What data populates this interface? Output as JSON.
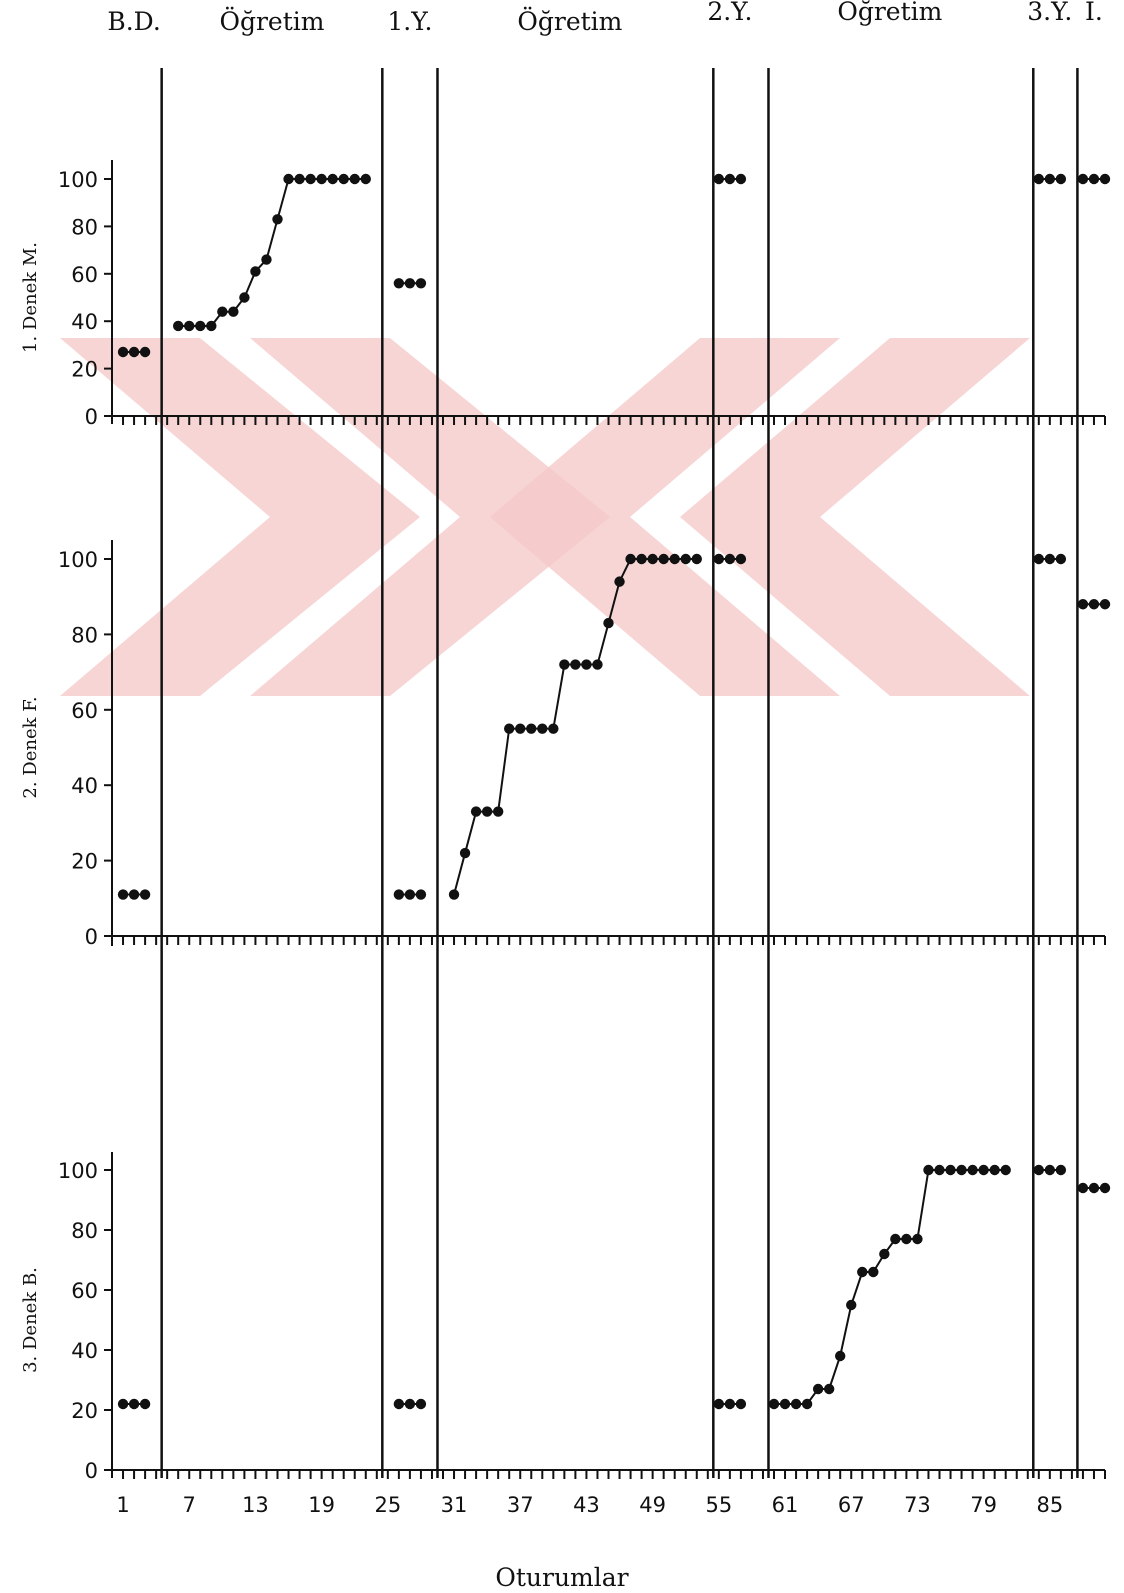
{
  "chart_data": {
    "type": "line",
    "xlabel": "Oturumlar",
    "x_ticks": [
      1,
      7,
      13,
      19,
      25,
      31,
      37,
      43,
      49,
      55,
      61,
      67,
      73,
      79,
      85
    ],
    "xlim": [
      0,
      90
    ],
    "ylim": [
      0,
      100
    ],
    "y_ticks": [
      0,
      20,
      40,
      60,
      80,
      100
    ],
    "phases": [
      {
        "label": "B.D.",
        "start": 1,
        "end": 3
      },
      {
        "label": "Öğretim",
        "start": 6,
        "end": 23
      },
      {
        "label": "1.Y.",
        "start": 26,
        "end": 28
      },
      {
        "label": "Öğretim",
        "start": 30,
        "end": 53
      },
      {
        "label": "2.Y.",
        "start": 55,
        "end": 57
      },
      {
        "label": "Öğretim",
        "start": 60,
        "end": 81
      },
      {
        "label": "3.Y.",
        "start": 84,
        "end": 86
      },
      {
        "label": "İ.",
        "start": 88,
        "end": 90
      }
    ],
    "phase_change_lines": [
      4.5,
      24.5,
      29.5,
      54.5,
      59.5,
      83.5,
      87.5
    ],
    "panels": [
      {
        "ylabel": "1. Denek M.",
        "segments": [
          {
            "x": [
              1,
              2,
              3
            ],
            "y": [
              27,
              27,
              27
            ]
          },
          {
            "x": [
              6,
              7,
              8,
              9,
              10,
              11,
              12,
              13,
              14,
              15,
              16,
              17,
              18,
              19,
              20,
              21,
              22,
              23
            ],
            "y": [
              38,
              38,
              38,
              38,
              44,
              44,
              50,
              61,
              66,
              83,
              100,
              100,
              100,
              100,
              100,
              100,
              100,
              100
            ]
          },
          {
            "x": [
              26,
              27,
              28
            ],
            "y": [
              56,
              56,
              56
            ]
          },
          {
            "x": [
              55,
              56,
              57
            ],
            "y": [
              100,
              100,
              100
            ]
          },
          {
            "x": [
              84,
              85,
              86
            ],
            "y": [
              100,
              100,
              100
            ]
          },
          {
            "x": [
              88,
              89,
              90
            ],
            "y": [
              100,
              100,
              100
            ]
          }
        ]
      },
      {
        "ylabel": "2. Denek F.",
        "segments": [
          {
            "x": [
              1,
              2,
              3
            ],
            "y": [
              11,
              11,
              11
            ]
          },
          {
            "x": [
              26,
              27,
              28
            ],
            "y": [
              11,
              11,
              11
            ]
          },
          {
            "x": [
              31,
              32,
              33,
              34,
              35,
              36,
              37,
              38,
              39,
              40,
              41,
              42,
              43,
              44,
              45,
              46,
              47,
              48,
              49,
              50,
              51,
              52,
              53
            ],
            "y": [
              11,
              22,
              33,
              33,
              33,
              55,
              55,
              55,
              55,
              55,
              72,
              72,
              72,
              72,
              83,
              94,
              100,
              100,
              100,
              100,
              100,
              100,
              100
            ]
          },
          {
            "x": [
              55,
              56,
              57
            ],
            "y": [
              100,
              100,
              100
            ]
          },
          {
            "x": [
              84,
              85,
              86
            ],
            "y": [
              100,
              100,
              100
            ]
          },
          {
            "x": [
              88,
              89,
              90
            ],
            "y": [
              88,
              88,
              88
            ]
          }
        ]
      },
      {
        "ylabel": "3. Denek B.",
        "segments": [
          {
            "x": [
              1,
              2,
              3
            ],
            "y": [
              22,
              22,
              22
            ]
          },
          {
            "x": [
              26,
              27,
              28
            ],
            "y": [
              22,
              22,
              22
            ]
          },
          {
            "x": [
              55,
              56,
              57
            ],
            "y": [
              22,
              22,
              22
            ]
          },
          {
            "x": [
              60,
              61,
              62,
              63,
              64,
              65,
              66,
              67,
              68,
              69,
              70,
              71,
              72,
              73,
              74,
              75,
              76,
              77,
              78,
              79,
              80,
              81
            ],
            "y": [
              22,
              22,
              22,
              22,
              27,
              27,
              38,
              55,
              66,
              66,
              72,
              77,
              77,
              77,
              100,
              100,
              100,
              100,
              100,
              100,
              100,
              100
            ]
          },
          {
            "x": [
              84,
              85,
              86
            ],
            "y": [
              100,
              100,
              100
            ]
          },
          {
            "x": [
              88,
              89,
              90
            ],
            "y": [
              94,
              94,
              94
            ]
          }
        ]
      }
    ]
  },
  "colors": {
    "ink": "#111111",
    "watermark": "#f4c7c7",
    "background": "#ffffff"
  }
}
